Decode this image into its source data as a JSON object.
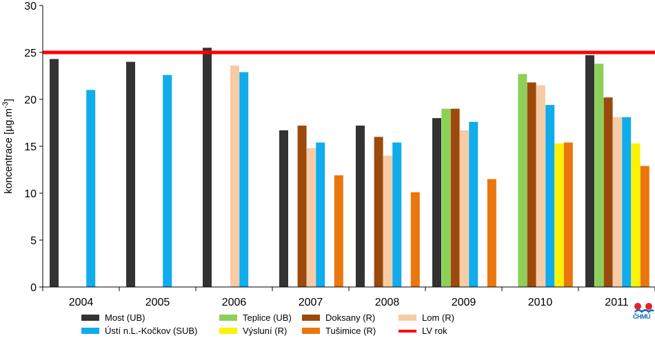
{
  "chart_data": {
    "type": "bar",
    "categories": [
      "2004",
      "2005",
      "2006",
      "2007",
      "2008",
      "2009",
      "2010",
      "2011"
    ],
    "ylabel": "koncentrace [µg.m",
    "ylabel_sup": "-3",
    "ylabel_end": "]",
    "ylim": [
      0,
      30
    ],
    "yticks": [
      "0",
      "5",
      "10",
      "15",
      "20",
      "25",
      "30"
    ],
    "series": [
      {
        "name": "Most (UB)",
        "color": "#333333",
        "values": [
          24.3,
          24.0,
          25.5,
          16.7,
          17.2,
          18.0,
          null,
          24.7
        ]
      },
      {
        "name": "Teplice (UB)",
        "color": "#8dd058",
        "values": [
          null,
          null,
          null,
          null,
          null,
          19.0,
          22.7,
          23.8
        ]
      },
      {
        "name": "Doksany (R)",
        "color": "#9c4a0c",
        "values": [
          null,
          null,
          null,
          17.2,
          16.0,
          19.0,
          21.8,
          20.2
        ]
      },
      {
        "name": "Lom (R)",
        "color": "#f7cba5",
        "values": [
          null,
          null,
          23.6,
          14.8,
          14.0,
          16.7,
          21.5,
          18.1
        ]
      },
      {
        "name": "Ústí n.L.-Kočkov (SUB)",
        "color": "#10acec",
        "values": [
          21.0,
          22.6,
          22.9,
          15.4,
          15.4,
          17.6,
          19.4,
          18.1
        ]
      },
      {
        "name": "Výsluní (R)",
        "color": "#fdf200",
        "values": [
          null,
          null,
          null,
          null,
          null,
          null,
          15.3,
          15.3
        ]
      },
      {
        "name": "Tušimice (R)",
        "color": "#eb760d",
        "values": [
          null,
          null,
          null,
          11.9,
          10.1,
          11.5,
          15.4,
          12.9
        ]
      }
    ],
    "limit_line": {
      "name": "LV rok",
      "value": 25,
      "color": "#ff0000"
    },
    "legend": [
      {
        "name": "Most (UB)",
        "color": "#333333",
        "kind": "bar"
      },
      {
        "name": "Teplice (UB)",
        "color": "#8dd058",
        "kind": "bar"
      },
      {
        "name": "Doksany (R)",
        "color": "#9c4a0c",
        "kind": "bar"
      },
      {
        "name": "Lom (R)",
        "color": "#f7cba5",
        "kind": "bar"
      },
      {
        "name": "Ústí n.L.-Kočkov (SUB)",
        "color": "#10acec",
        "kind": "bar"
      },
      {
        "name": "Výsluní (R)",
        "color": "#fdf200",
        "kind": "bar"
      },
      {
        "name": "Tušimice (R)",
        "color": "#eb760d",
        "kind": "bar"
      },
      {
        "name": "LV rok",
        "color": "#ff0000",
        "kind": "line"
      }
    ],
    "legend_placement": "bottom",
    "grid": false
  },
  "logo": {
    "text": "ČHMÚ",
    "icon": "chmu-logo-icon"
  }
}
